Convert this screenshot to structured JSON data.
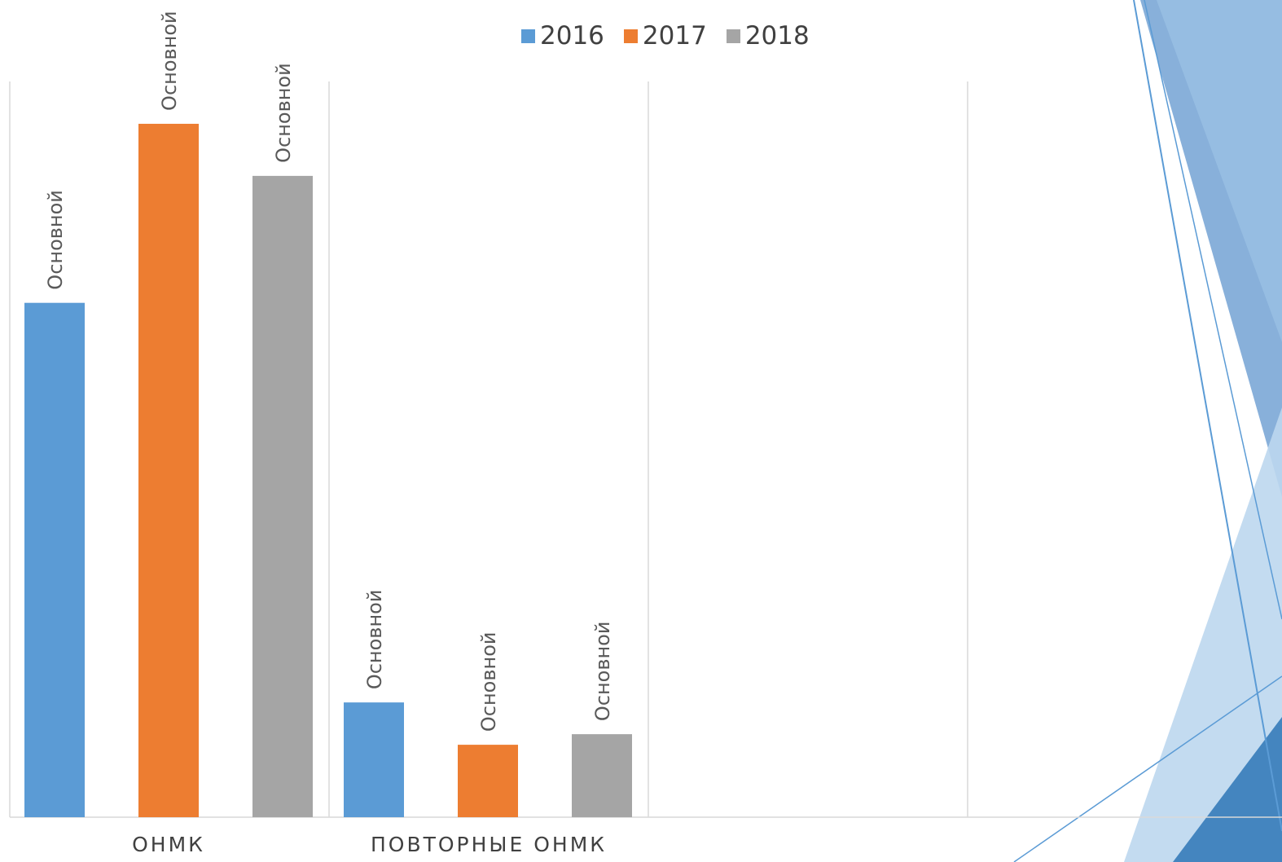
{
  "chart_data": {
    "type": "bar",
    "categories": [
      "ОНМК",
      "ПОВТОРНЫЕ ОНМК",
      "",
      ""
    ],
    "series": [
      {
        "name": "2016",
        "values": [
          632,
          141,
          null,
          null
        ],
        "color": "#5B9BD5",
        "labels": [
          "Основной",
          "Основной"
        ]
      },
      {
        "name": "2017",
        "values": [
          852,
          89,
          null,
          null
        ],
        "color": "#ED7D31",
        "labels": [
          "Основной",
          "Основной"
        ]
      },
      {
        "name": "2018",
        "values": [
          788,
          102,
          null,
          null
        ],
        "color": "#A5A5A5",
        "labels": [
          "Основной",
          "Основной"
        ]
      }
    ],
    "ylim": [
      0,
      904
    ],
    "legend": "top",
    "grid": "vertical category separators"
  },
  "theme": {
    "accent_dark": "#2E75B6",
    "accent_mid": "#5B9BD5",
    "accent_light": "#9DC3E6"
  }
}
